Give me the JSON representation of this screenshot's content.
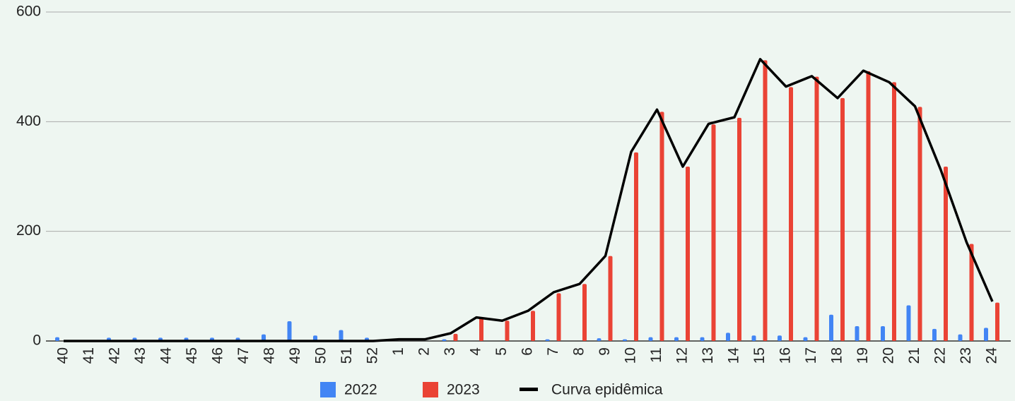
{
  "chart_data": {
    "type": "bar",
    "categories": [
      "40",
      "41",
      "42",
      "43",
      "44",
      "45",
      "46",
      "47",
      "48",
      "49",
      "50",
      "51",
      "52",
      "1",
      "2",
      "3",
      "4",
      "5",
      "6",
      "7",
      "8",
      "9",
      "10",
      "11",
      "12",
      "13",
      "14",
      "15",
      "16",
      "17",
      "18",
      "19",
      "20",
      "21",
      "22",
      "23",
      "24"
    ],
    "series": [
      {
        "name": "2022",
        "color": "#4285f4",
        "values": [
          7,
          2,
          6,
          6,
          6,
          6,
          6,
          6,
          12,
          36,
          10,
          20,
          6,
          0,
          0,
          3,
          0,
          0,
          0,
          3,
          0,
          5,
          3,
          7,
          7,
          7,
          15,
          10,
          10,
          7,
          48,
          27,
          27,
          65,
          22,
          12,
          24
        ]
      },
      {
        "name": "2023",
        "color": "#ea4335",
        "values": [
          0,
          0,
          0,
          0,
          0,
          0,
          0,
          0,
          0,
          0,
          0,
          0,
          0,
          0,
          0,
          13,
          42,
          37,
          55,
          87,
          104,
          155,
          344,
          418,
          318,
          395,
          407,
          512,
          463,
          482,
          443,
          492,
          472,
          427,
          318,
          177,
          70
        ]
      },
      {
        "name": "Curva epidêmica",
        "type": "line",
        "color": "#000000",
        "values": [
          0,
          0,
          0,
          0,
          0,
          0,
          0,
          0,
          0,
          0,
          0,
          0,
          0,
          3,
          3,
          14,
          43,
          37,
          55,
          89,
          104,
          155,
          345,
          422,
          318,
          396,
          408,
          514,
          464,
          483,
          443,
          493,
          472,
          428,
          312,
          180,
          72
        ]
      }
    ],
    "ylim": [
      0,
      600
    ],
    "yticks": [
      0,
      200,
      400,
      600
    ],
    "grid": true
  }
}
